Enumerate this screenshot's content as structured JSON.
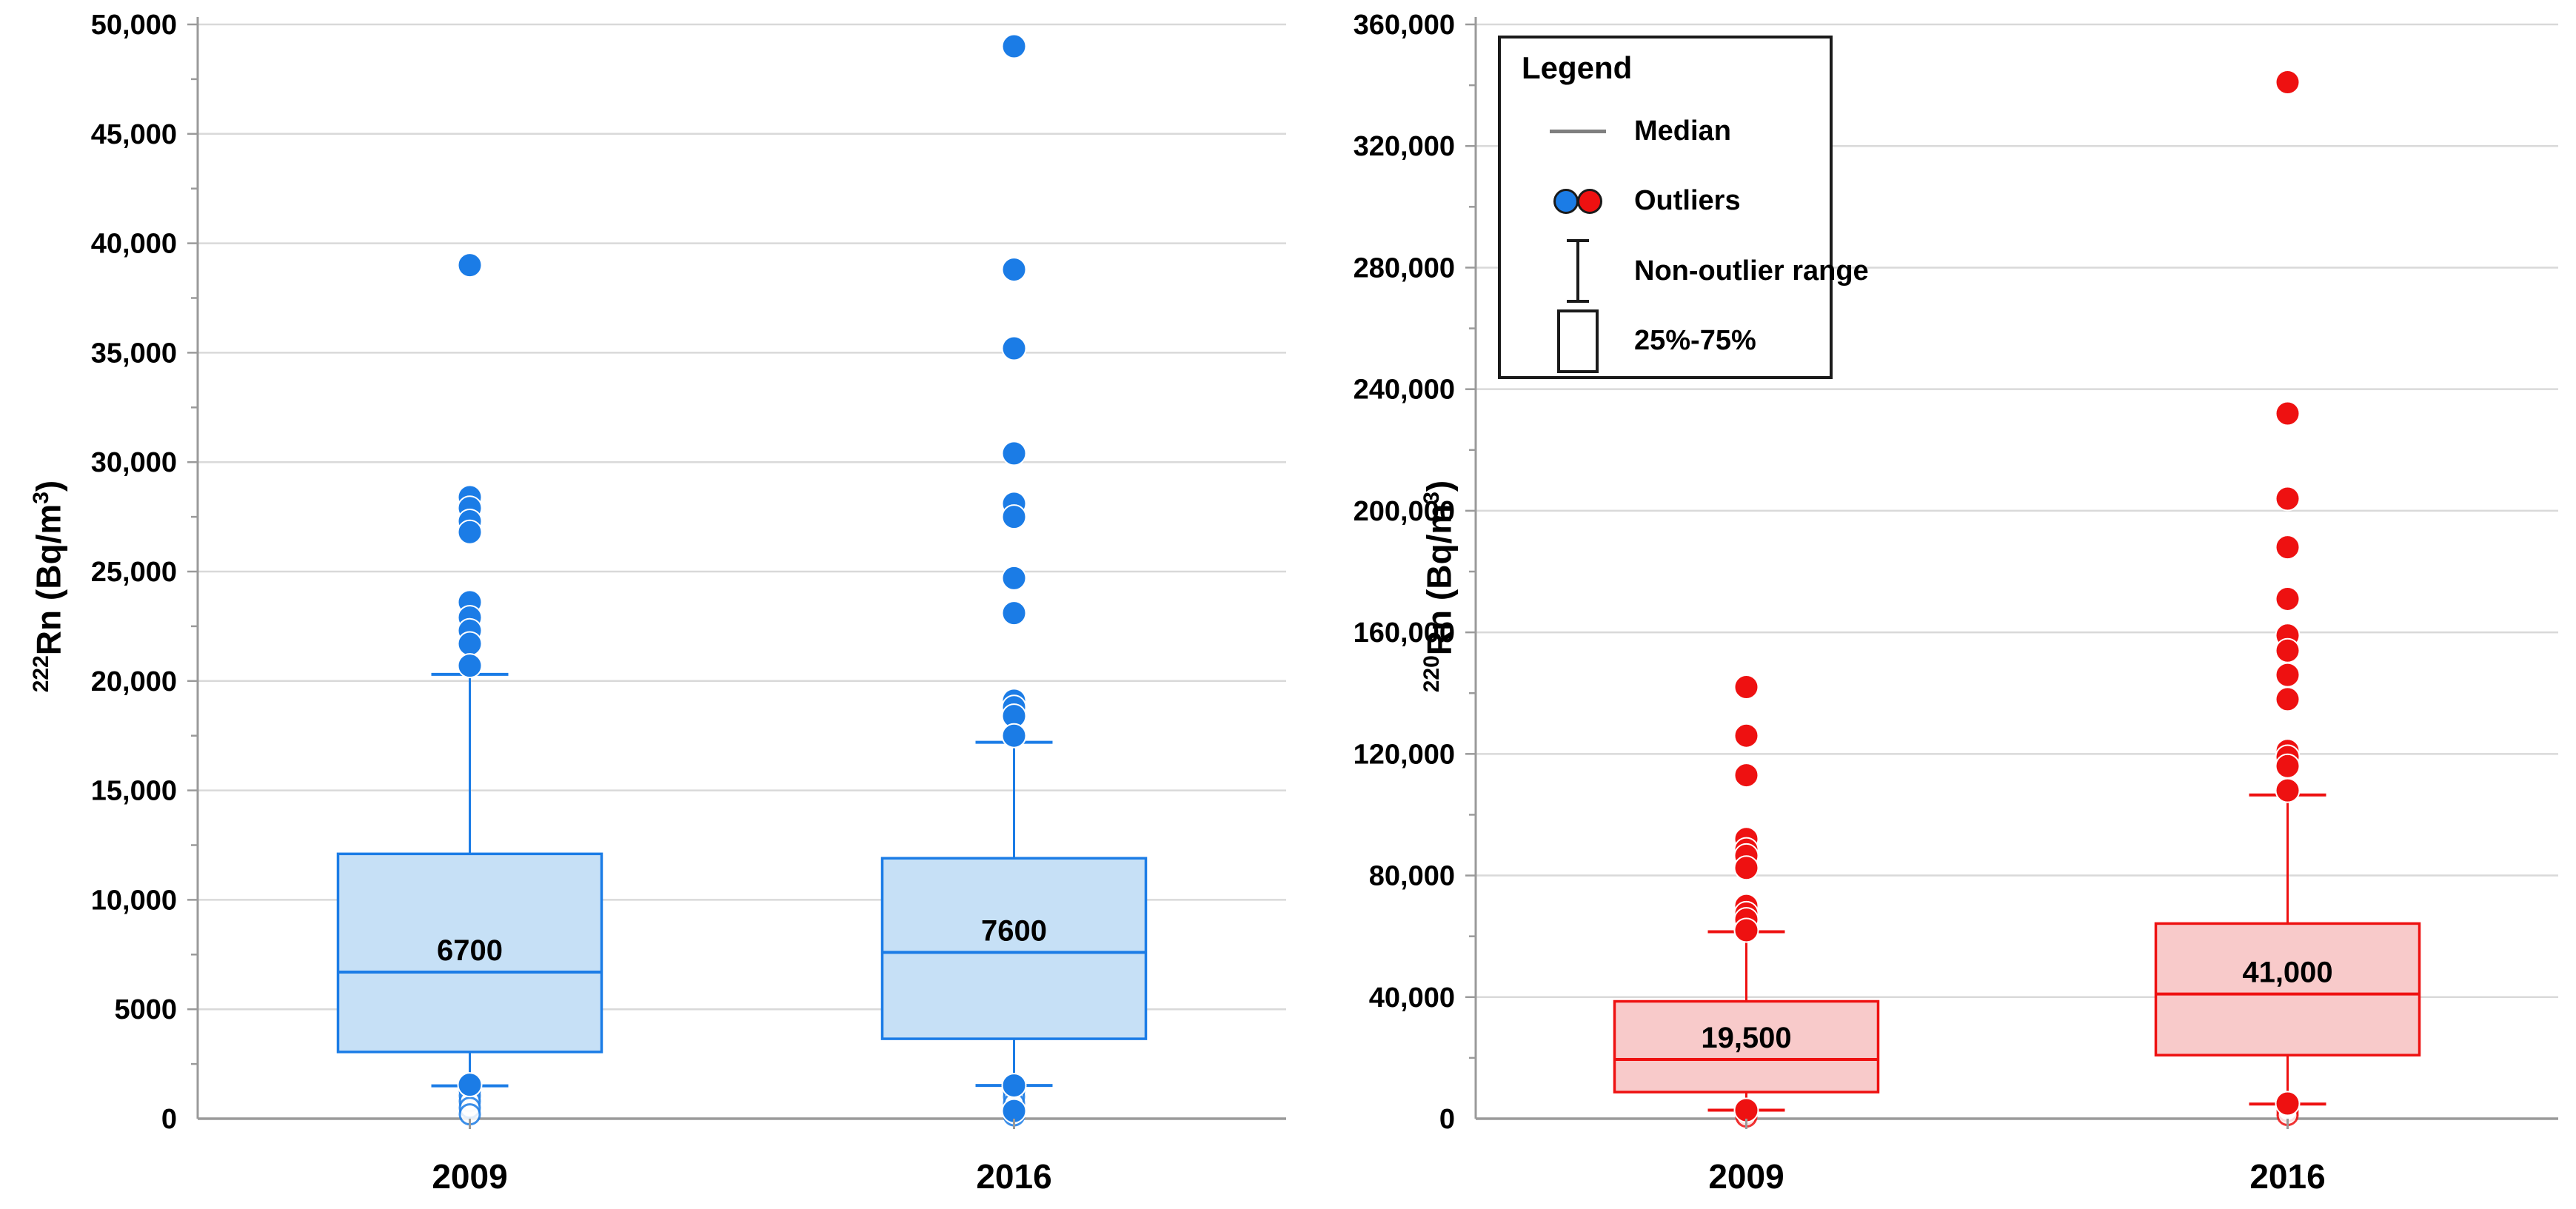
{
  "page": {
    "background": "#ffffff"
  },
  "legend": {
    "title": "Legend",
    "items": [
      {
        "symbol": "median-line",
        "label": "Median"
      },
      {
        "symbol": "outlier-dots",
        "label": "Outliers"
      },
      {
        "symbol": "error-bar",
        "label": "Non-outlier range"
      },
      {
        "symbol": "box",
        "label": "25%-75%"
      }
    ]
  },
  "colors": {
    "blue_accent": "#1b7ce6",
    "blue_fill": "#c6e0f6",
    "blue_dot": "#1b7ce6",
    "red_accent": "#ee1111",
    "red_fill": "#f8caca",
    "red_dot": "#ee1111",
    "grid": "#d9d9d9",
    "axis": "#9a9a9a",
    "text": "#000000"
  },
  "chart_data": [
    {
      "type": "box",
      "id": "rn222",
      "ylabel": "222Rn (Bq/m3)",
      "ylabel_parts": {
        "sup1": "222",
        "text1": "Rn (Bq/m",
        "sup2": "3",
        "text2": ")"
      },
      "ylim": [
        0,
        50000
      ],
      "y_major": 5000,
      "y_minor": 2500,
      "grid": true,
      "legend_position": "top-right",
      "ytick_labels": [
        "50,000",
        "45,000",
        "40,000",
        "35,000",
        "30,000",
        "25,000",
        "20,000",
        "15,000",
        "10,000",
        "5000",
        "0"
      ],
      "categories": [
        "2009",
        "2016"
      ],
      "accent": "#1b7ce6",
      "box_fill": "#c6e0f6",
      "dot": "#1b7ce6",
      "boxes": [
        {
          "category": "2009",
          "q1": 3050,
          "median": 6700,
          "q3": 12100,
          "median_label": "6700",
          "whisker_high": 20300,
          "whisker_low": 1500,
          "outliers_high": [
            39000,
            28400,
            27900,
            27300,
            26800,
            23600,
            22900,
            22300,
            21700,
            20700
          ],
          "outliers_low_solid": [
            1550
          ],
          "outliers_low_ghost": [
            1300,
            1050,
            800,
            500,
            200
          ]
        },
        {
          "category": "2016",
          "q1": 3650,
          "median": 7600,
          "q3": 11900,
          "median_label": "7600",
          "whisker_high": 17200,
          "whisker_low": 1520,
          "outliers_high": [
            49000,
            38800,
            35200,
            30400,
            28100,
            27500,
            24700,
            23100,
            19100,
            18800,
            18400,
            17500
          ],
          "outliers_low_solid": [
            1520,
            350
          ],
          "outliers_low_ghost": [
            1250,
            1000,
            700,
            150
          ]
        }
      ]
    },
    {
      "type": "box",
      "id": "rn220",
      "ylabel": "220Rn (Bq/m3)",
      "ylabel_parts": {
        "sup1": "220",
        "text1": "Rn (Bq/m",
        "sup2": "3",
        "text2": ")"
      },
      "ylim": [
        0,
        360000
      ],
      "y_major": 40000,
      "y_minor": 20000,
      "grid": true,
      "ytick_labels": [
        "360,000",
        "320,000",
        "280,000",
        "240,000",
        "200,000",
        "160,000",
        "120,000",
        "80,000",
        "40,000",
        "0"
      ],
      "categories": [
        "2009",
        "2016"
      ],
      "accent": "#ee1111",
      "box_fill": "#f8caca",
      "dot": "#ee1111",
      "boxes": [
        {
          "category": "2009",
          "q1": 8750,
          "median": 19500,
          "q3": 38600,
          "median_label": "19,500",
          "whisker_high": 61500,
          "whisker_low": 2800,
          "outliers_high": [
            142000,
            126000,
            113000,
            92000,
            88500,
            86500,
            82500,
            70000,
            67500,
            65500,
            62000
          ],
          "outliers_low_solid": [
            2800
          ],
          "outliers_low_ghost": [
            1500,
            700
          ]
        },
        {
          "category": "2016",
          "q1": 20900,
          "median": 41000,
          "q3": 64200,
          "median_label": "41,000",
          "whisker_high": 106500,
          "whisker_low": 4800,
          "outliers_high": [
            341000,
            232000,
            204000,
            188000,
            171000,
            159000,
            154000,
            146000,
            138000,
            121000,
            119000,
            116000,
            108000
          ],
          "outliers_low_solid": [
            5000
          ],
          "outliers_low_ghost": [
            2500,
            1200
          ]
        }
      ]
    }
  ]
}
